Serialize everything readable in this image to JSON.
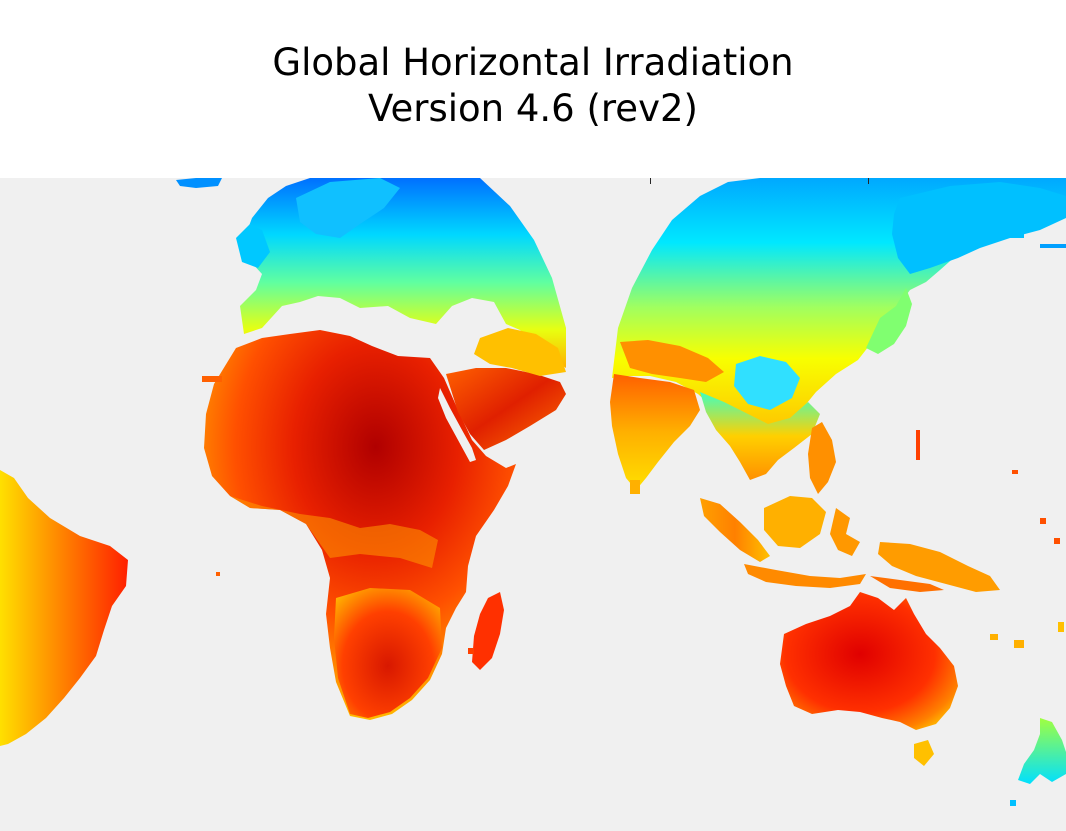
{
  "title": {
    "line1": "Global Horizontal Irradiation",
    "line2": "Version 4.6 (rev2)"
  },
  "map": {
    "background_color": "#f0f0f0",
    "colormap": "jet",
    "colormap_stops": [
      "#00008f",
      "#0000ff",
      "#00a0ff",
      "#00ffff",
      "#80ff80",
      "#ffff00",
      "#ff8000",
      "#ff0000",
      "#800000"
    ],
    "regions": [
      {
        "name": "south-america-east"
      },
      {
        "name": "europe"
      },
      {
        "name": "africa"
      },
      {
        "name": "arabia"
      },
      {
        "name": "madagascar"
      },
      {
        "name": "asia"
      },
      {
        "name": "india"
      },
      {
        "name": "southeast-asia"
      },
      {
        "name": "indonesia"
      },
      {
        "name": "australia"
      },
      {
        "name": "new-zealand"
      }
    ]
  }
}
